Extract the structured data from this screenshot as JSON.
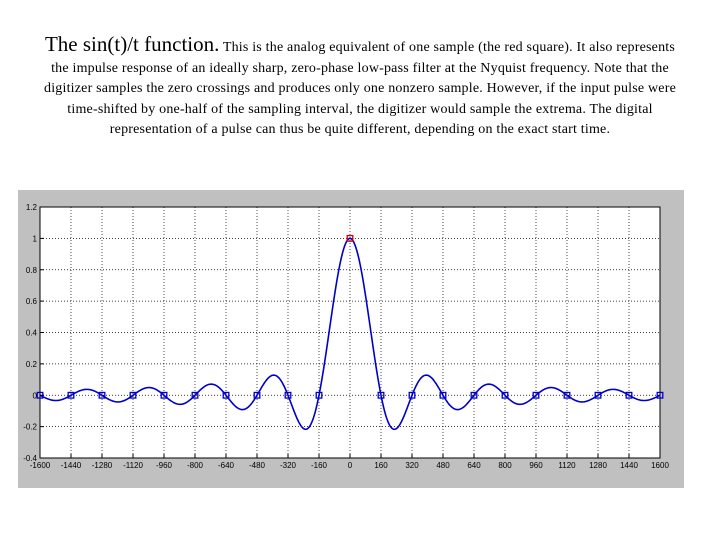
{
  "caption": {
    "lead": "The sin(t)/t function.",
    "body": " This is the analog equivalent of one sample (the red square). It also represents the impulse response of an ideally sharp, zero-phase low-pass filter at the Nyquist frequency. Note that the digitizer samples the zero crossings and produces only one nonzero sample. However, if the input pulse were time-shifted by one-half of the sampling interval, the digitizer would sample the extrema. The digital representation of a pulse can thus be quite different, depending on the exact start time."
  },
  "chart_data": {
    "type": "line",
    "title": "",
    "xlabel": "",
    "ylabel": "",
    "xlim": [
      -1600,
      1600
    ],
    "ylim": [
      -0.4,
      1.2
    ],
    "grid": true,
    "x_ticks": [
      -1600,
      -1440,
      -1280,
      -1120,
      -960,
      -800,
      -640,
      -480,
      -320,
      -160,
      0,
      160,
      320,
      480,
      640,
      800,
      960,
      1120,
      1280,
      1440,
      1600
    ],
    "y_ticks": [
      -0.4,
      -0.2,
      0,
      0.2,
      0.4,
      0.6,
      0.8,
      1,
      1.2
    ],
    "x_tick_labels": [
      "-1600",
      "-1440",
      "-1280",
      "-1120",
      "-960",
      "-800",
      "-640",
      "-480",
      "-320",
      "-160",
      "0",
      "160",
      "320",
      "480",
      "640",
      "800",
      "960",
      "1120",
      "1280",
      "1440",
      "1600"
    ],
    "y_tick_labels": [
      "-0.4",
      "-0.2",
      "0",
      "0.2",
      "0.4",
      "0.6",
      "0.8",
      "1",
      "1.2"
    ],
    "series": [
      {
        "kind": "curve",
        "function": "sin(pi*x/160)/(pi*x/160)",
        "color": "#0000cc",
        "x_range": [
          -1600,
          1600
        ]
      },
      {
        "kind": "samples",
        "color": "#0000cc",
        "x": [
          -1600,
          -1440,
          -1280,
          -1120,
          -960,
          -800,
          -640,
          -480,
          -320,
          -160,
          160,
          320,
          480,
          640,
          800,
          960,
          1120,
          1280,
          1440,
          1600
        ],
        "y": [
          0,
          0,
          0,
          0,
          0,
          0,
          0,
          0,
          0,
          0,
          0,
          0,
          0,
          0,
          0,
          0,
          0,
          0,
          0,
          0
        ]
      },
      {
        "kind": "samples",
        "color": "#cc0000",
        "x": [
          0
        ],
        "y": [
          1
        ]
      }
    ]
  }
}
